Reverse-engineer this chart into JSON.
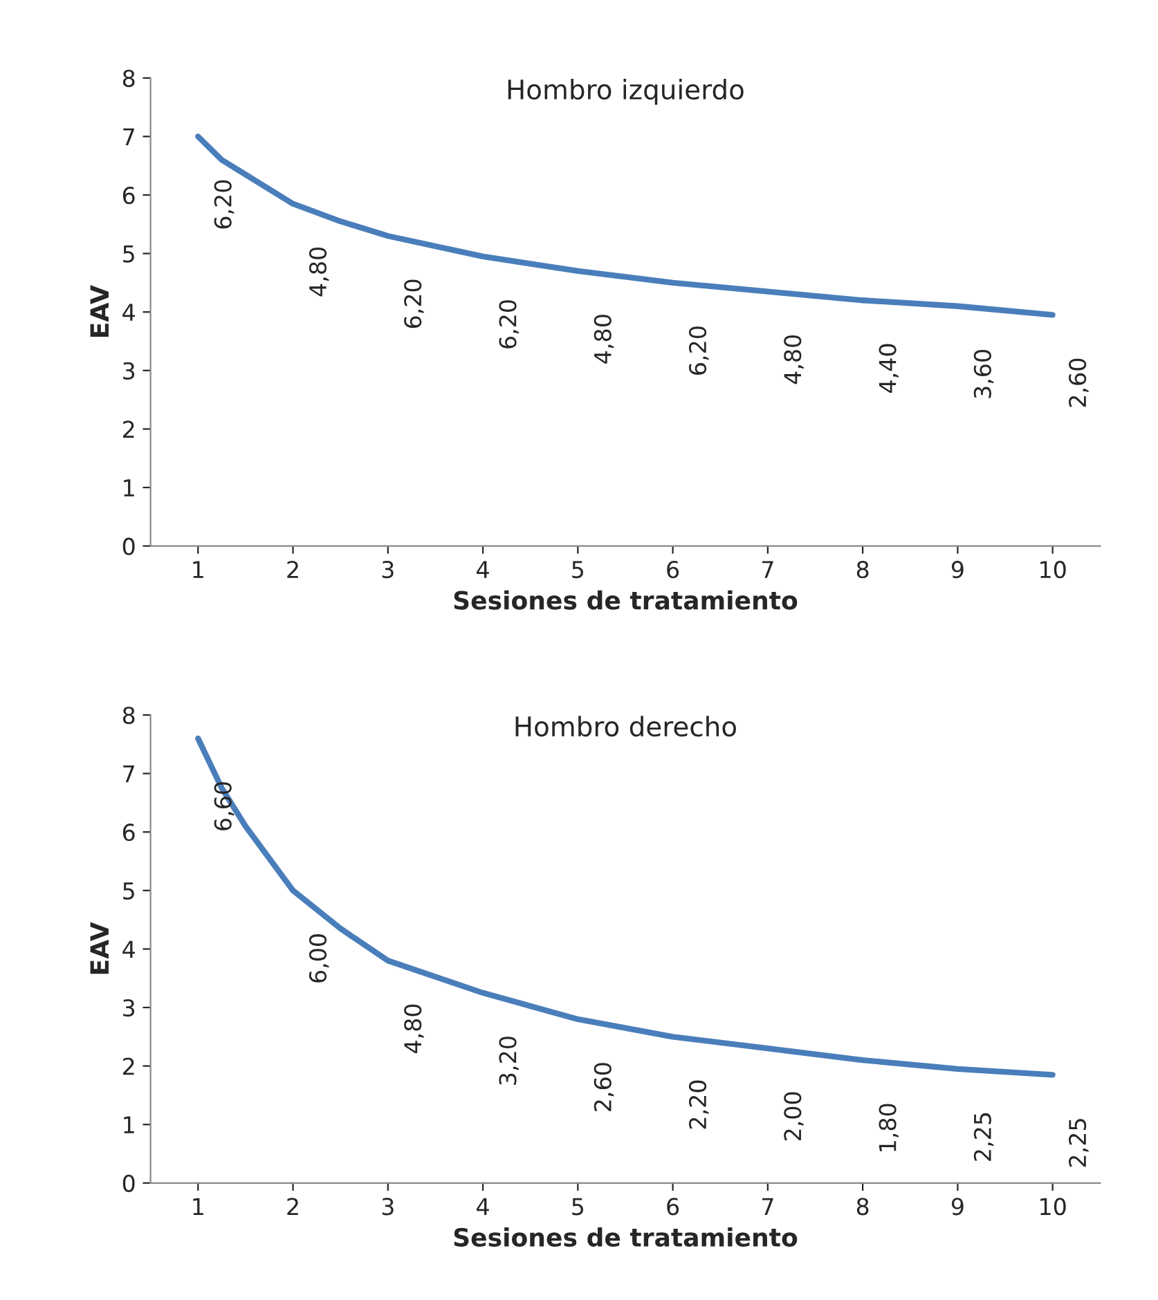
{
  "chart_data": [
    {
      "type": "line",
      "title": "Hombro izquierdo",
      "xlabel": "Sesiones de tratamiento",
      "ylabel": "EAV",
      "xlim": [
        0.5,
        10.5
      ],
      "xticks": [
        1,
        2,
        3,
        4,
        5,
        6,
        7,
        8,
        9,
        10
      ],
      "ylim": [
        0,
        8
      ],
      "yticks": [
        0,
        1,
        2,
        3,
        4,
        5,
        6,
        7,
        8
      ],
      "grid": false,
      "legend": false,
      "marker": "none",
      "line_style": "solid",
      "series": [
        {
          "color": "#4a7ebb",
          "x": [
            1,
            1.25,
            1.5,
            2,
            2.5,
            3,
            4,
            5,
            6,
            7,
            8,
            9,
            10
          ],
          "values": [
            7.0,
            6.6,
            6.35,
            5.85,
            5.55,
            5.3,
            4.95,
            4.7,
            4.5,
            4.35,
            4.2,
            4.1,
            3.95
          ]
        }
      ],
      "annotations": [
        "6,20",
        "4,80",
        "6,20",
        "6,20",
        "4,80",
        "6,20",
        "4,80",
        "4,40",
        "3,60",
        "2,60"
      ]
    },
    {
      "type": "line",
      "title": "Hombro derecho",
      "xlabel": "Sesiones de tratamiento",
      "ylabel": "EAV",
      "xlim": [
        0.5,
        10.5
      ],
      "xticks": [
        1,
        2,
        3,
        4,
        5,
        6,
        7,
        8,
        9,
        10
      ],
      "ylim": [
        0,
        8
      ],
      "yticks": [
        0,
        1,
        2,
        3,
        4,
        5,
        6,
        7,
        8
      ],
      "grid": false,
      "legend": false,
      "marker": "none",
      "line_style": "solid",
      "series": [
        {
          "color": "#4a7ebb",
          "x": [
            1,
            1.25,
            1.5,
            2,
            2.5,
            3,
            4,
            5,
            6,
            7,
            8,
            9,
            10
          ],
          "values": [
            7.6,
            6.75,
            6.1,
            5.0,
            4.35,
            3.8,
            3.25,
            2.8,
            2.5,
            2.3,
            2.1,
            1.95,
            1.85
          ]
        }
      ],
      "annotations": [
        "6,60",
        "6,00",
        "4,80",
        "3,20",
        "2,60",
        "2,20",
        "2,00",
        "1,80",
        "2,25",
        "2,25"
      ]
    }
  ]
}
